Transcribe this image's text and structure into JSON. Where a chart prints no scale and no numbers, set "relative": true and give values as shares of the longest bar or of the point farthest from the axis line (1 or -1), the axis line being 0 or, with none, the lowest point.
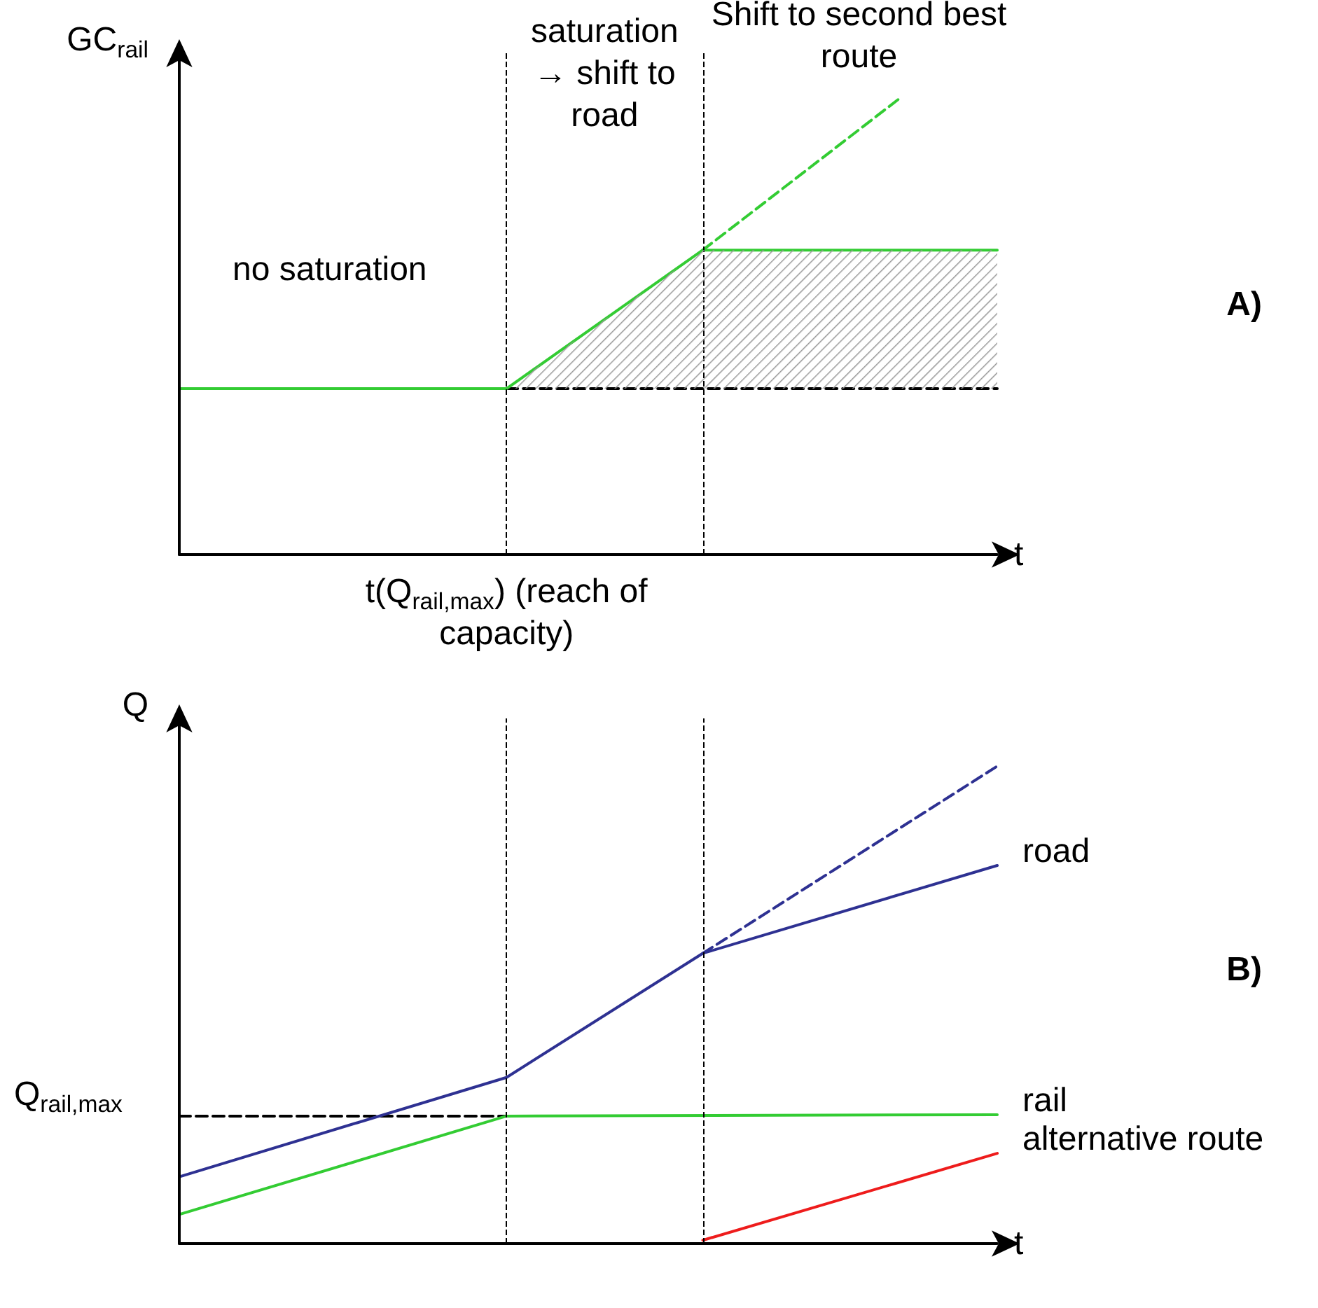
{
  "chart_data": [
    {
      "type": "line",
      "xlabel": "t",
      "ylabel": "GC$_{rail}$",
      "relative": true,
      "marker": "none",
      "legend": false,
      "grid": false,
      "categories": [
        null,
        null,
        null,
        null,
        null,
        null,
        null,
        null,
        null,
        null,
        null,
        null,
        null,
        null,
        null,
        null,
        null,
        null,
        null,
        null,
        null,
        null,
        null,
        null,
        null,
        null
      ],
      "series": [
        {
          "color": "#000000",
          "line_style": "dashed",
          "values": [
            null,
            null,
            null,
            null,
            null,
            null,
            null,
            null,
            null,
            null,
            0.364,
            null,
            null,
            null,
            null,
            null,
            null,
            null,
            null,
            null,
            null,
            null,
            null,
            null,
            null,
            0.364
          ]
        },
        {
          "color": "#33cc33",
          "line_style": "solid",
          "values": [
            0.364,
            null,
            null,
            null,
            null,
            null,
            null,
            null,
            null,
            null,
            0.364,
            null,
            null,
            null,
            null,
            null,
            0.668,
            null,
            null,
            null,
            null,
            null,
            null,
            null,
            null,
            0.668
          ]
        },
        {
          "color": "#33cc33",
          "line_style": "dashed",
          "values": [
            null,
            null,
            null,
            null,
            null,
            null,
            null,
            null,
            null,
            null,
            null,
            null,
            null,
            null,
            null,
            null,
            0.668,
            null,
            null,
            null,
            null,
            null,
            1,
            null,
            null,
            null
          ]
        }
      ],
      "annotations": [
        "no saturation",
        "saturation → shift to road",
        "Shift to second best route",
        "t(Q$_{rail,max}$) (reach of capacity)",
        "A)"
      ]
    },
    {
      "type": "line",
      "xlabel": "t",
      "ylabel": "Q",
      "relative": true,
      "marker": "none",
      "legend": false,
      "grid": false,
      "categories": [
        null,
        null,
        null,
        null,
        null,
        null,
        null,
        null,
        null,
        null,
        null,
        null,
        null,
        null,
        null,
        null,
        null,
        null,
        null,
        null,
        null,
        null,
        null,
        null,
        null,
        null
      ],
      "series": [
        {
          "color": "#000000",
          "line_style": "dashed",
          "values": [
            0.267,
            null,
            null,
            null,
            null,
            null,
            null,
            null,
            null,
            null,
            0.267,
            null,
            null,
            null,
            null,
            null,
            null,
            null,
            null,
            null,
            null,
            null,
            null,
            null,
            null,
            null
          ]
        },
        {
          "name": "road",
          "color": "#2e3192",
          "line_style": "solid",
          "values": [
            0.14,
            null,
            null,
            null,
            null,
            null,
            null,
            null,
            null,
            null,
            0.348,
            null,
            null,
            null,
            null,
            null,
            0.608,
            null,
            null,
            null,
            null,
            null,
            null,
            null,
            null,
            0.792
          ]
        },
        {
          "color": "#2e3192",
          "line_style": "dashed",
          "values": [
            null,
            null,
            null,
            null,
            null,
            null,
            null,
            null,
            null,
            null,
            null,
            null,
            null,
            null,
            null,
            null,
            0.608,
            null,
            null,
            null,
            null,
            null,
            null,
            null,
            null,
            1
          ]
        },
        {
          "name": "rail",
          "color": "#33cc33",
          "line_style": "solid",
          "values": [
            0.061,
            null,
            null,
            null,
            null,
            null,
            null,
            null,
            null,
            null,
            0.267,
            null,
            null,
            null,
            null,
            null,
            null,
            null,
            null,
            null,
            null,
            null,
            null,
            null,
            null,
            0.27
          ]
        },
        {
          "name": "alternative route",
          "color": "#ee1c1c",
          "line_style": "solid",
          "values": [
            null,
            null,
            null,
            null,
            null,
            null,
            null,
            null,
            null,
            null,
            null,
            null,
            null,
            null,
            null,
            null,
            0.007,
            null,
            null,
            null,
            null,
            null,
            null,
            null,
            null,
            0.189
          ]
        }
      ],
      "annotations": [
        "Q$_{rail,max}$",
        "B)"
      ]
    }
  ]
}
